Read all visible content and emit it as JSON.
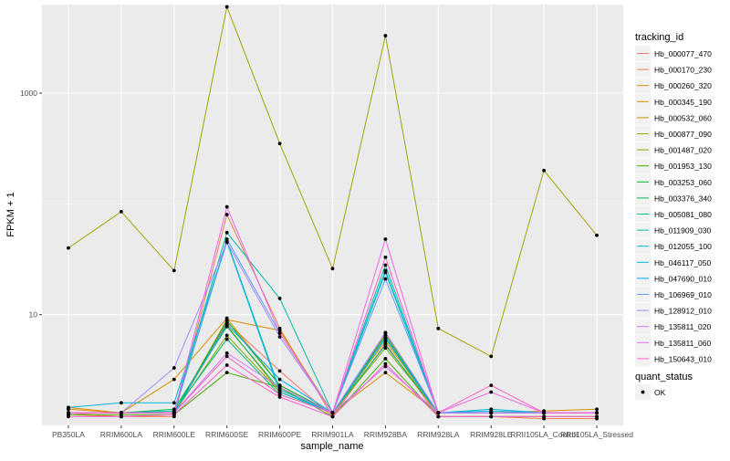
{
  "chart_data": {
    "type": "line",
    "xlabel": "sample_name",
    "ylabel": "FPKM + 1",
    "y_scale": "log10",
    "ylim": [
      1,
      6300
    ],
    "y_ticks": [
      10,
      1000
    ],
    "y_tick_labels": [
      "10",
      "1000"
    ],
    "categories": [
      "PB350LA",
      "RRIM600LA",
      "RRIM600LE",
      "RRIM600SE",
      "RRIM600PE",
      "RRIM901LA",
      "RRIM928BA",
      "RRIM928LA",
      "RRIM928LE",
      "RRII105LA_Control",
      "RRII105LA_Stressed"
    ],
    "grid": true,
    "panel_background": "#ebebeb",
    "legend_position": "right",
    "legend": {
      "color_title": "tracking_id",
      "shape_title": "quant_status",
      "shape_entries": [
        "OK"
      ]
    },
    "series": [
      {
        "name": "Hb_000077_470",
        "color": "#F8766D",
        "values": [
          1.3,
          1.2,
          1.25,
          8.5,
          3.1,
          1.2,
          5.5,
          1.2,
          1.2,
          1.2,
          1.2
        ]
      },
      {
        "name": "Hb_000170_230",
        "color": "#F07E4C",
        "values": [
          1.25,
          1.2,
          1.2,
          80,
          7.5,
          1.2,
          6.8,
          1.2,
          1.2,
          1.15,
          1.15
        ]
      },
      {
        "name": "Hb_000260_320",
        "color": "#E38900",
        "values": [
          1.4,
          1.3,
          1.3,
          9.0,
          7.2,
          1.3,
          6.2,
          1.3,
          1.3,
          1.3,
          1.3
        ]
      },
      {
        "name": "Hb_000345_190",
        "color": "#D39200",
        "values": [
          1.45,
          1.3,
          2.6,
          9.3,
          2.3,
          1.3,
          3.0,
          1.3,
          1.3,
          1.35,
          1.4
        ]
      },
      {
        "name": "Hb_000532_060",
        "color": "#BF9C00",
        "values": [
          1.3,
          1.3,
          1.3,
          8.0,
          2.0,
          1.3,
          5.8,
          1.3,
          1.3,
          1.3,
          1.3
        ]
      },
      {
        "name": "Hb_000877_090",
        "color": "#A3A500",
        "values": [
          40,
          85,
          25,
          6000,
          350,
          26,
          3300,
          7.5,
          4.2,
          200,
          52
        ]
      },
      {
        "name": "Hb_001487_020",
        "color": "#80AB00",
        "values": [
          1.3,
          1.3,
          1.3,
          6.5,
          2.0,
          1.3,
          5.0,
          1.3,
          1.3,
          1.3,
          1.3
        ]
      },
      {
        "name": "Hb_001953_130",
        "color": "#46B300",
        "values": [
          1.25,
          1.25,
          1.25,
          3.0,
          2.2,
          1.2,
          4.0,
          1.2,
          1.2,
          1.2,
          1.2
        ]
      },
      {
        "name": "Hb_003253_060",
        "color": "#00B82B",
        "values": [
          1.3,
          1.3,
          1.3,
          8.8,
          2.3,
          1.3,
          6.5,
          1.3,
          1.3,
          1.3,
          1.3
        ]
      },
      {
        "name": "Hb_003376_340",
        "color": "#00BC5A",
        "values": [
          1.3,
          1.3,
          1.4,
          7.8,
          2.1,
          1.3,
          6.1,
          1.3,
          1.3,
          1.3,
          1.3
        ]
      },
      {
        "name": "Hb_005081_080",
        "color": "#00BE82",
        "values": [
          1.3,
          1.3,
          1.35,
          6.0,
          1.9,
          1.3,
          5.3,
          1.3,
          1.3,
          1.3,
          1.3
        ]
      },
      {
        "name": "Hb_011909_030",
        "color": "#00BFA3",
        "values": [
          1.3,
          1.3,
          1.35,
          55,
          14,
          1.3,
          28,
          1.3,
          1.3,
          1.3,
          1.3
        ]
      },
      {
        "name": "Hb_012055_100",
        "color": "#00BCC2",
        "values": [
          1.3,
          1.3,
          1.3,
          46,
          2.1,
          1.3,
          24,
          1.3,
          1.35,
          1.3,
          1.3
        ]
      },
      {
        "name": "Hb_046117_050",
        "color": "#00B5DE",
        "values": [
          1.45,
          1.6,
          1.6,
          45,
          2.0,
          1.3,
          25,
          1.3,
          1.4,
          1.3,
          1.3
        ]
      },
      {
        "name": "Hb_047690_010",
        "color": "#00A9F4",
        "values": [
          1.3,
          1.3,
          1.3,
          8.2,
          2.6,
          1.3,
          6.2,
          1.3,
          1.3,
          1.3,
          1.3
        ]
      },
      {
        "name": "Hb_106969_010",
        "color": "#619CFF",
        "values": [
          1.3,
          1.3,
          1.3,
          48,
          6.8,
          1.3,
          21,
          1.3,
          1.3,
          1.3,
          1.3
        ]
      },
      {
        "name": "Hb_128912_010",
        "color": "#A58AFF",
        "values": [
          1.3,
          1.3,
          3.3,
          45,
          6.3,
          1.3,
          6.9,
          1.3,
          1.3,
          1.3,
          1.3
        ]
      },
      {
        "name": "Hb_135811_020",
        "color": "#D277FF",
        "values": [
          1.3,
          1.3,
          1.3,
          4.5,
          2.2,
          1.3,
          3.4,
          1.3,
          1.3,
          1.3,
          1.3
        ]
      },
      {
        "name": "Hb_135811_060",
        "color": "#EE67EB",
        "values": [
          1.3,
          1.3,
          1.3,
          94,
          6.8,
          1.3,
          48,
          1.3,
          2.0,
          1.3,
          1.3
        ]
      },
      {
        "name": "Hb_150643_010",
        "color": "#FF61C9",
        "values": [
          1.3,
          1.3,
          1.3,
          4.2,
          1.9,
          1.3,
          33,
          1.3,
          2.3,
          1.3,
          1.3
        ]
      },
      {
        "name": "",
        "color": "#FB61D7",
        "values": [
          1.2,
          1.2,
          1.25,
          3.5,
          1.8,
          1.2,
          3.6,
          1.2,
          1.2,
          1.2,
          1.2
        ]
      }
    ]
  }
}
